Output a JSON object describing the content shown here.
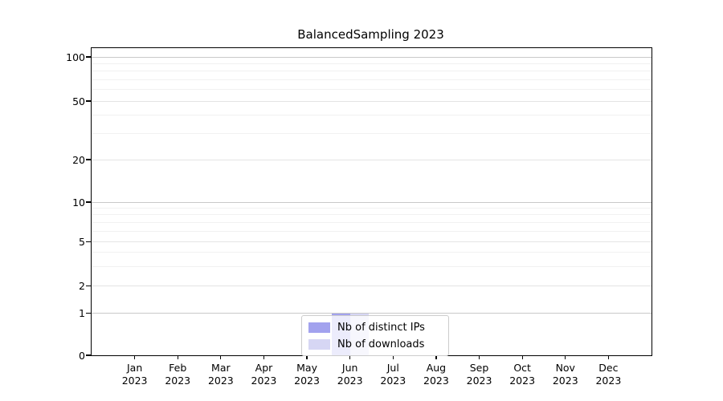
{
  "chart_data": {
    "type": "bar",
    "title": "BalancedSampling 2023",
    "categories": [
      "Jan 2023",
      "Feb 2023",
      "Mar 2023",
      "Apr 2023",
      "May 2023",
      "Jun 2023",
      "Jul 2023",
      "Aug 2023",
      "Sep 2023",
      "Oct 2023",
      "Nov 2023",
      "Dec 2023"
    ],
    "series": [
      {
        "name": "Nb of distinct IPs",
        "color": "#a2a2ee",
        "values": [
          0,
          0,
          0,
          0,
          0,
          1,
          0,
          0,
          0,
          0,
          0,
          0
        ]
      },
      {
        "name": "Nb of downloads",
        "color": "#d6d6f4",
        "values": [
          0,
          0,
          0,
          0,
          0,
          1,
          0,
          0,
          0,
          0,
          0,
          0
        ]
      }
    ],
    "yscale": "symlog",
    "ylim": [
      0,
      115
    ],
    "y_ticks": [
      0,
      1,
      2,
      5,
      10,
      20,
      50,
      100
    ],
    "y_minor_ticks": [
      3,
      4,
      6,
      7,
      8,
      9,
      30,
      40,
      60,
      70,
      80,
      90
    ],
    "grid": true,
    "legend_position": "lower center",
    "legend_framealpha": 0.8
  }
}
